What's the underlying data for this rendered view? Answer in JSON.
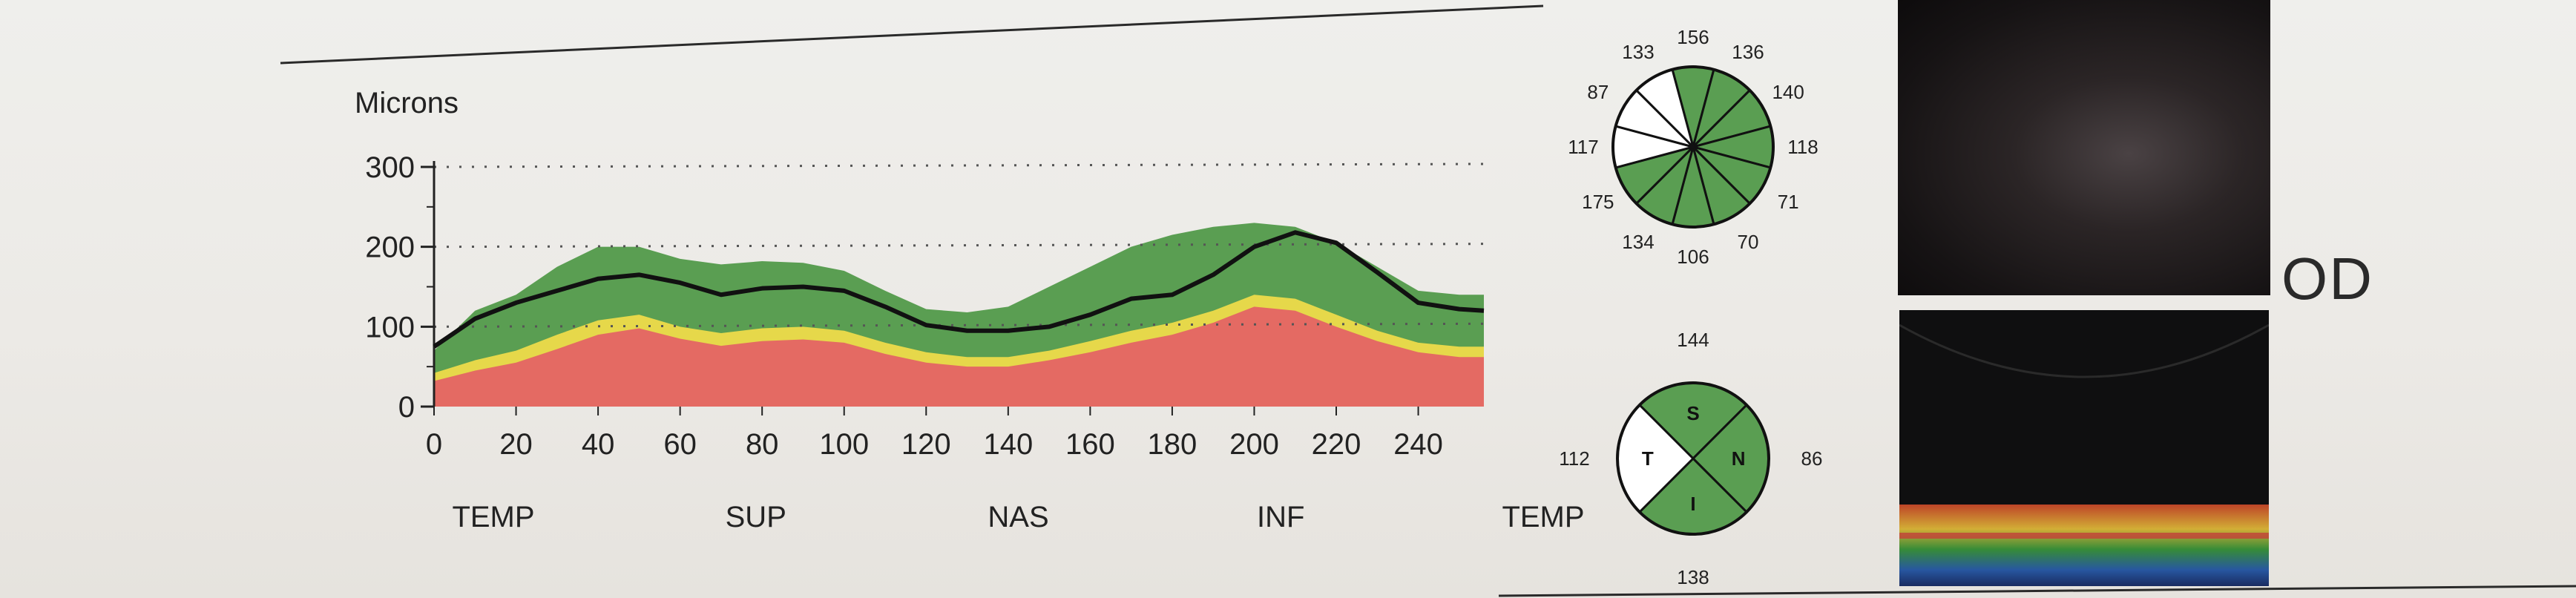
{
  "chart_data": {
    "type": "area",
    "ylabel": "Microns",
    "y_ticks": [
      "0",
      "100",
      "200",
      "300"
    ],
    "x_ticks": [
      "0",
      "20",
      "40",
      "60",
      "80",
      "100",
      "120",
      "140",
      "160",
      "180",
      "200",
      "220",
      "240"
    ],
    "sectors": [
      "TEMP",
      "SUP",
      "NAS",
      "INF",
      "TEMP"
    ],
    "ylim": [
      0,
      300
    ],
    "xlim": [
      0,
      256
    ],
    "x": [
      0,
      10,
      20,
      30,
      40,
      50,
      60,
      70,
      80,
      90,
      100,
      110,
      120,
      130,
      140,
      150,
      160,
      170,
      180,
      190,
      200,
      210,
      220,
      230,
      240,
      250,
      256
    ],
    "series": [
      {
        "name": "",
        "role": "measured",
        "values": [
          75,
          110,
          130,
          145,
          160,
          165,
          155,
          140,
          148,
          150,
          145,
          125,
          102,
          95,
          95,
          100,
          115,
          135,
          140,
          165,
          200,
          218,
          205,
          168,
          130,
          122,
          120
        ]
      },
      {
        "role": "band-upper",
        "values": [
          70,
          120,
          140,
          175,
          200,
          200,
          185,
          178,
          182,
          180,
          170,
          145,
          122,
          118,
          125,
          150,
          175,
          200,
          215,
          225,
          230,
          225,
          205,
          175,
          145,
          140,
          140
        ]
      },
      {
        "role": "band-5pct",
        "values": [
          42,
          58,
          70,
          90,
          108,
          115,
          100,
          92,
          98,
          100,
          95,
          80,
          68,
          62,
          62,
          70,
          82,
          95,
          105,
          120,
          140,
          135,
          115,
          95,
          80,
          75,
          75
        ]
      },
      {
        "role": "band-1pct",
        "values": [
          32,
          45,
          55,
          72,
          90,
          98,
          85,
          76,
          82,
          84,
          80,
          66,
          55,
          50,
          50,
          58,
          68,
          80,
          90,
          105,
          125,
          120,
          100,
          82,
          68,
          62,
          62
        ]
      }
    ],
    "clock_sectors": [
      {
        "label": "156",
        "color": "#5a9e52"
      },
      {
        "label": "136",
        "color": "#5a9e52"
      },
      {
        "label": "140",
        "color": "#5a9e52"
      },
      {
        "label": "118",
        "color": "#5a9e52"
      },
      {
        "label": "71",
        "color": "#5a9e52"
      },
      {
        "label": "70",
        "color": "#5a9e52"
      },
      {
        "label": "106",
        "color": "#5a9e52"
      },
      {
        "label": "134",
        "color": "#5a9e52"
      },
      {
        "label": "175",
        "color": "#5a9e52"
      },
      {
        "label": "117",
        "color": "#ffffff"
      },
      {
        "label": "87",
        "color": "#ffffff"
      },
      {
        "label": "133",
        "color": "#ffffff"
      }
    ],
    "quadrants": [
      {
        "letter": "S",
        "value": "144",
        "color": "#5a9e52"
      },
      {
        "letter": "N",
        "value": "86",
        "color": "#5a9e52"
      },
      {
        "letter": "I",
        "value": "138",
        "color": "#5a9e52"
      },
      {
        "letter": "T",
        "value": "112",
        "color": "#ffffff"
      }
    ],
    "colors": {
      "normal": "#5a9e52",
      "borderline": "#e6d84a",
      "abnormal": "#e46a63",
      "measured_line": "#111111",
      "grid": "#555555"
    }
  },
  "eye": "OD"
}
